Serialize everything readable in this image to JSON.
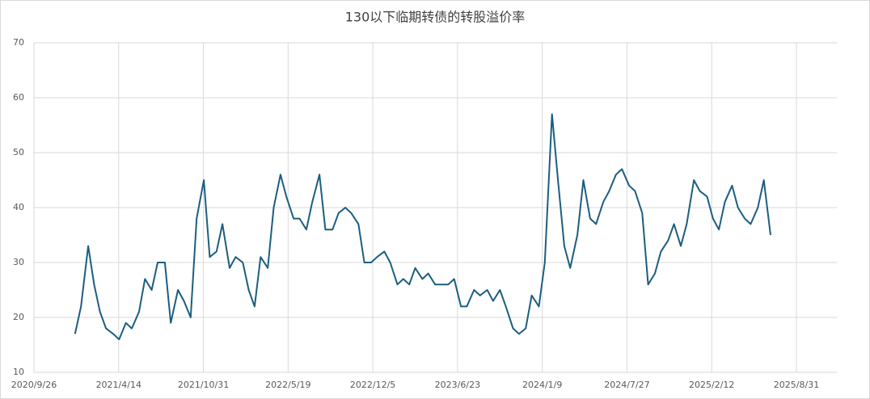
{
  "chart_data": {
    "type": "line",
    "title": "130以下临期转债的转股溢价率",
    "x": [
      "2021/1/1",
      "2021/1/15",
      "2021/2/1",
      "2021/2/15",
      "2021/3/1",
      "2021/3/15",
      "2021/4/1",
      "2021/4/15",
      "2021/5/1",
      "2021/5/15",
      "2021/6/1",
      "2021/6/15",
      "2021/7/1",
      "2021/7/15",
      "2021/8/1",
      "2021/8/15",
      "2021/9/1",
      "2021/9/15",
      "2021/10/1",
      "2021/10/15",
      "2021/11/1",
      "2021/11/15",
      "2021/12/1",
      "2021/12/15",
      "2022/1/1",
      "2022/1/15",
      "2022/2/1",
      "2022/2/15",
      "2022/3/1",
      "2022/3/15",
      "2022/4/1",
      "2022/4/15",
      "2022/5/1",
      "2022/5/15",
      "2022/6/1",
      "2022/6/15",
      "2022/7/1",
      "2022/7/15",
      "2022/8/1",
      "2022/8/15",
      "2022/9/1",
      "2022/9/15",
      "2022/10/1",
      "2022/10/15",
      "2022/11/1",
      "2022/11/15",
      "2022/12/1",
      "2022/12/15",
      "2023/1/1",
      "2023/1/15",
      "2023/2/1",
      "2023/2/15",
      "2023/3/1",
      "2023/3/15",
      "2023/4/1",
      "2023/4/15",
      "2023/5/1",
      "2023/5/15",
      "2023/6/1",
      "2023/6/15",
      "2023/7/1",
      "2023/7/15",
      "2023/8/1",
      "2023/8/15",
      "2023/9/1",
      "2023/9/15",
      "2023/10/1",
      "2023/10/15",
      "2023/11/1",
      "2023/11/15",
      "2023/12/1",
      "2023/12/15",
      "2024/1/1",
      "2024/1/15",
      "2024/2/1",
      "2024/2/15",
      "2024/3/1",
      "2024/3/15",
      "2024/4/1",
      "2024/4/15",
      "2024/5/1",
      "2024/5/15",
      "2024/6/1",
      "2024/6/15",
      "2024/7/1",
      "2024/7/15",
      "2024/8/1",
      "2024/8/15",
      "2024/9/1",
      "2024/9/15",
      "2024/10/1",
      "2024/10/15",
      "2024/11/1",
      "2024/11/15",
      "2024/12/1",
      "2024/12/15",
      "2025/1/1",
      "2025/1/15",
      "2025/2/1",
      "2025/2/15",
      "2025/3/1",
      "2025/3/15",
      "2025/4/1",
      "2025/4/15",
      "2025/5/1",
      "2025/5/15",
      "2025/6/1",
      "2025/6/15",
      "2025/7/1"
    ],
    "series": [
      {
        "color": "#1b5e80",
        "values": [
          17,
          22,
          33,
          26,
          21,
          18,
          17,
          16,
          19,
          18,
          21,
          27,
          25,
          30,
          30,
          19,
          25,
          23,
          20,
          38,
          45,
          31,
          32,
          37,
          29,
          31,
          30,
          25,
          22,
          31,
          29,
          40,
          46,
          42,
          38,
          38,
          36,
          41,
          46,
          36,
          36,
          39,
          40,
          39,
          37,
          30,
          30,
          31,
          32,
          30,
          26,
          27,
          26,
          29,
          27,
          28,
          26,
          26,
          26,
          27,
          22,
          22,
          25,
          24,
          25,
          23,
          25,
          22,
          18,
          17,
          18,
          24,
          22,
          30,
          57,
          45,
          33,
          29,
          35,
          45,
          38,
          37,
          41,
          43,
          46,
          47,
          44,
          43,
          39,
          26,
          28,
          32,
          34,
          37,
          33,
          37,
          45,
          43,
          42,
          38,
          36,
          41,
          44,
          40,
          38,
          37,
          40,
          45,
          35
        ]
      }
    ],
    "xlim": [
      "2020/9/26",
      "2025/8/31"
    ],
    "xticks": [
      "2020/9/26",
      "2021/4/14",
      "2021/10/31",
      "2022/5/19",
      "2022/12/5",
      "2023/6/23",
      "2024/1/9",
      "2024/7/27",
      "2025/2/12",
      "2025/8/31"
    ],
    "ylim": [
      10,
      70
    ],
    "yticks": [
      10,
      20,
      30,
      40,
      50,
      60,
      70
    ],
    "grid": true
  }
}
